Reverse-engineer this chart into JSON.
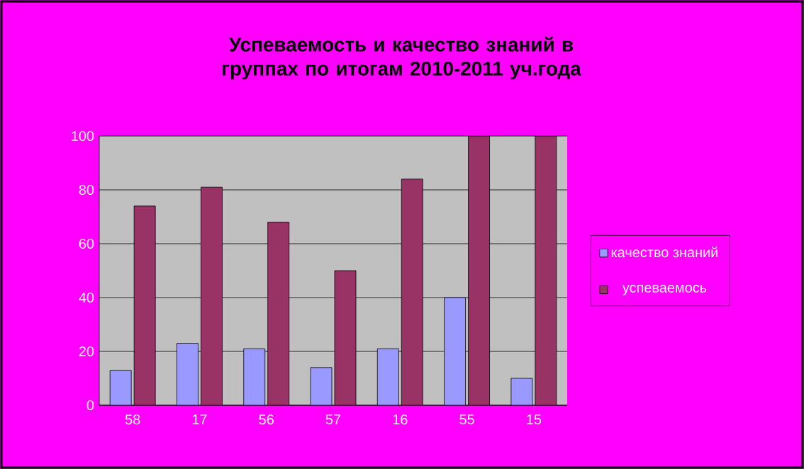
{
  "chart_data": {
    "type": "bar",
    "title": "Успеваемость и качество знаний в группах по итогам 2010-2011 уч.года",
    "categories": [
      "58",
      "17",
      "56",
      "57",
      "16",
      "55",
      "15"
    ],
    "series": [
      {
        "name": "качество знаний",
        "color": "#9999ff",
        "values": [
          13,
          23,
          21,
          14,
          21,
          40,
          10
        ]
      },
      {
        "name": "успеваемось",
        "color": "#993366",
        "values": [
          74,
          81,
          68,
          50,
          84,
          100,
          100
        ]
      }
    ],
    "ylim": [
      0,
      100
    ],
    "yticks": [
      0,
      20,
      40,
      60,
      80,
      100
    ],
    "grid": "y",
    "legend": "right"
  }
}
